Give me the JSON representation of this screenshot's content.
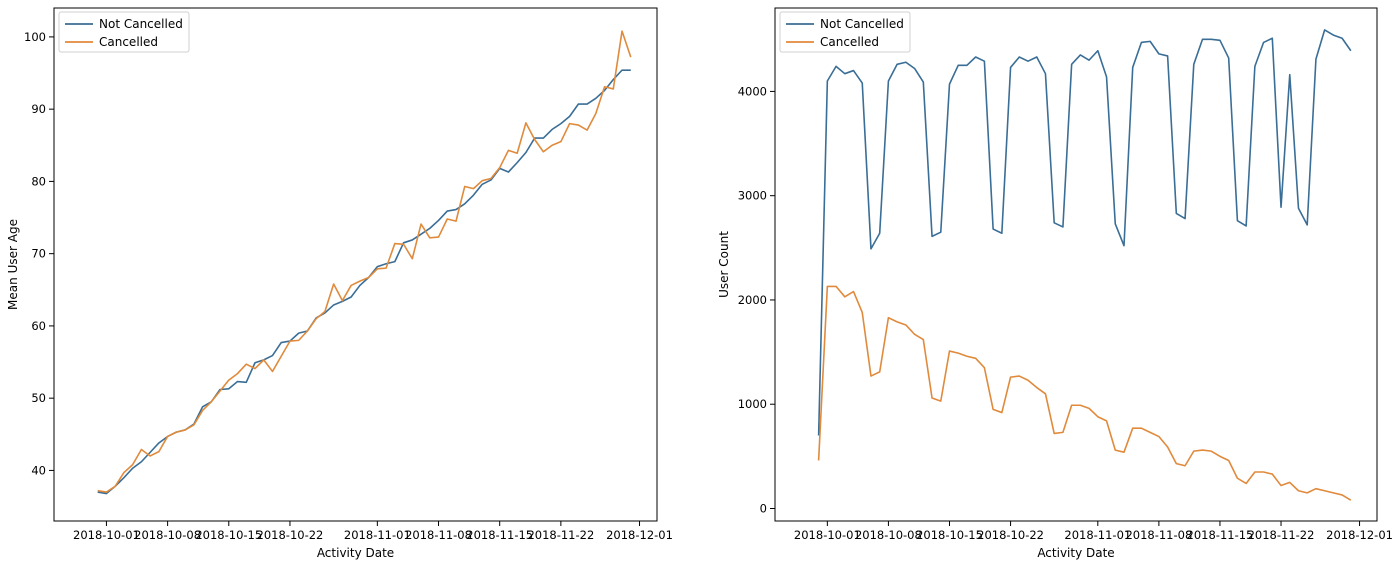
{
  "chart_data": [
    {
      "type": "line",
      "title": "",
      "xlabel": "Activity Date",
      "ylabel": "Mean User Age",
      "xlim": [
        "2018-09-25",
        "2018-12-03"
      ],
      "ylim": [
        33,
        104
      ],
      "x_ticks": [
        "2018-10-01",
        "2018-10-08",
        "2018-10-15",
        "2018-10-22",
        "2018-11-01",
        "2018-11-08",
        "2018-11-15",
        "2018-11-22",
        "2018-12-01"
      ],
      "y_ticks": [
        40,
        50,
        60,
        70,
        80,
        90,
        100
      ],
      "legend": "top-left",
      "x_start": "2018-09-30",
      "series": [
        {
          "name": "Not Cancelled",
          "color": "#3a6e96",
          "values": [
            37.0,
            36.8,
            37.8,
            39.0,
            40.3,
            41.2,
            42.5,
            43.8,
            44.7,
            45.3,
            45.6,
            46.4,
            48.8,
            49.5,
            51.2,
            51.3,
            52.3,
            52.2,
            54.9,
            55.3,
            55.9,
            57.7,
            57.9,
            59.0,
            59.3,
            61.1,
            61.8,
            62.9,
            63.4,
            64.0,
            65.6,
            66.7,
            68.2,
            68.6,
            68.9,
            71.5,
            71.9,
            72.7,
            73.5,
            74.6,
            75.9,
            76.1,
            76.9,
            78.1,
            79.6,
            80.2,
            81.8,
            81.3,
            82.6,
            84.0,
            86.0,
            86.0,
            87.2,
            88.0,
            89.0,
            90.7,
            90.7,
            91.5,
            92.6,
            94.1,
            95.4,
            95.4
          ]
        },
        {
          "name": "Cancelled",
          "color": "#e08a3c",
          "values": [
            37.2,
            37.0,
            37.8,
            39.7,
            40.8,
            42.9,
            42.0,
            42.6,
            44.7,
            45.3,
            45.6,
            46.3,
            48.3,
            49.5,
            51.0,
            52.5,
            53.4,
            54.7,
            54.1,
            55.3,
            53.7,
            55.8,
            57.9,
            58.0,
            59.3,
            61.0,
            62.0,
            65.8,
            63.5,
            65.6,
            66.2,
            66.7,
            67.9,
            68.0,
            71.4,
            71.3,
            69.3,
            74.1,
            72.2,
            72.3,
            74.8,
            74.5,
            79.3,
            79.0,
            80.1,
            80.4,
            81.9,
            84.3,
            83.9,
            88.1,
            85.8,
            84.1,
            85.0,
            85.5,
            88.0,
            87.8,
            87.1,
            89.4,
            93.1,
            92.8,
            100.8,
            97.2
          ]
        }
      ]
    },
    {
      "type": "line",
      "title": "",
      "xlabel": "Activity Date",
      "ylabel": "User Count",
      "xlim": [
        "2018-09-25",
        "2018-12-03"
      ],
      "ylim": [
        -120,
        4800
      ],
      "x_ticks": [
        "2018-10-01",
        "2018-10-08",
        "2018-10-15",
        "2018-10-22",
        "2018-11-01",
        "2018-11-08",
        "2018-11-15",
        "2018-11-22",
        "2018-12-01"
      ],
      "y_ticks": [
        0,
        1000,
        2000,
        3000,
        4000
      ],
      "legend": "top-left",
      "x_start": "2018-09-30",
      "series": [
        {
          "name": "Not Cancelled",
          "color": "#3a6e96",
          "values": [
            700,
            4100,
            4240,
            4170,
            4200,
            4080,
            2490,
            2640,
            4100,
            4260,
            4280,
            4220,
            4090,
            2610,
            2650,
            4070,
            4250,
            4250,
            4330,
            4290,
            2680,
            2640,
            4230,
            4330,
            4290,
            4330,
            4170,
            2740,
            2700,
            4260,
            4350,
            4300,
            4390,
            4140,
            2730,
            2520,
            4230,
            4470,
            4480,
            4360,
            4340,
            2830,
            2780,
            4260,
            4500,
            4500,
            4490,
            4320,
            2760,
            2710,
            4240,
            4470,
            4510,
            2890,
            4160,
            2880,
            2720,
            4310,
            4590,
            4540,
            4510,
            4390
          ]
        },
        {
          "name": "Cancelled",
          "color": "#e08a3c",
          "values": [
            460,
            2130,
            2130,
            2030,
            2080,
            1880,
            1270,
            1310,
            1830,
            1790,
            1760,
            1670,
            1620,
            1060,
            1030,
            1510,
            1490,
            1460,
            1440,
            1350,
            950,
            920,
            1260,
            1270,
            1230,
            1160,
            1100,
            720,
            730,
            990,
            990,
            960,
            880,
            840,
            560,
            540,
            770,
            770,
            730,
            690,
            590,
            430,
            410,
            550,
            560,
            550,
            500,
            460,
            290,
            240,
            350,
            350,
            330,
            220,
            250,
            170,
            150,
            190,
            170,
            150,
            130,
            80
          ]
        }
      ]
    }
  ]
}
